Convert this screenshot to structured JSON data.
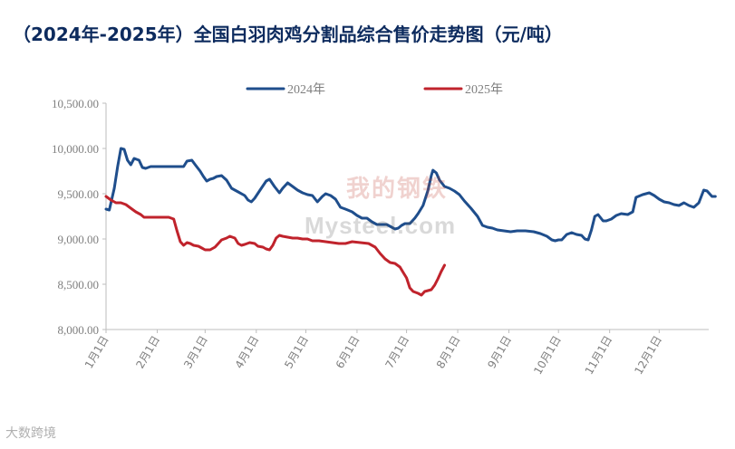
{
  "title": "（2024年-2025年）全国白羽肉鸡分割品综合售价走势图（元/吨）",
  "watermark": {
    "logo": "我的钢铁",
    "text": "Mysteel.com"
  },
  "source_mark": "大数跨境",
  "chart_data": {
    "type": "line",
    "title": "（2024年-2025年）全国白羽肉鸡分割品综合售价走势图（元/吨）",
    "xlabel": "",
    "ylabel": "",
    "ylim": [
      8000,
      10500
    ],
    "yticks": [
      8000,
      8500,
      9000,
      9500,
      10000,
      10500
    ],
    "ytick_labels": [
      "8,000.00",
      "8,500.00",
      "9,000.00",
      "9,500.00",
      "10,000.00",
      "10,500.00"
    ],
    "xlim": [
      1,
      366
    ],
    "xticks": [
      1,
      32,
      61,
      92,
      122,
      153,
      183,
      214,
      245,
      275,
      306,
      336
    ],
    "xtick_labels": [
      "1月1日",
      "2月1日",
      "3月1日",
      "4月1日",
      "5月1日",
      "6月1日",
      "7月1日",
      "8月1日",
      "9月1日",
      "10月1日",
      "11月1日",
      "12月1日"
    ],
    "x_unit": "day of year",
    "grid": false,
    "legend": "top-center",
    "series": [
      {
        "name": "2024年",
        "color": "#1f4e8c",
        "points": [
          [
            1,
            9330
          ],
          [
            3,
            9320
          ],
          [
            6,
            9560
          ],
          [
            8,
            9800
          ],
          [
            10,
            10000
          ],
          [
            12,
            9990
          ],
          [
            14,
            9870
          ],
          [
            16,
            9820
          ],
          [
            18,
            9890
          ],
          [
            21,
            9870
          ],
          [
            23,
            9790
          ],
          [
            25,
            9780
          ],
          [
            28,
            9800
          ],
          [
            33,
            9800
          ],
          [
            40,
            9800
          ],
          [
            45,
            9800
          ],
          [
            48,
            9800
          ],
          [
            50,
            9860
          ],
          [
            53,
            9870
          ],
          [
            55,
            9820
          ],
          [
            58,
            9750
          ],
          [
            60,
            9690
          ],
          [
            62,
            9640
          ],
          [
            64,
            9660
          ],
          [
            66,
            9670
          ],
          [
            68,
            9690
          ],
          [
            71,
            9700
          ],
          [
            74,
            9650
          ],
          [
            77,
            9560
          ],
          [
            81,
            9520
          ],
          [
            85,
            9480
          ],
          [
            87,
            9430
          ],
          [
            89,
            9410
          ],
          [
            91,
            9450
          ],
          [
            95,
            9560
          ],
          [
            98,
            9640
          ],
          [
            100,
            9660
          ],
          [
            103,
            9580
          ],
          [
            106,
            9510
          ],
          [
            108,
            9560
          ],
          [
            111,
            9620
          ],
          [
            114,
            9580
          ],
          [
            117,
            9540
          ],
          [
            120,
            9510
          ],
          [
            123,
            9490
          ],
          [
            126,
            9480
          ],
          [
            129,
            9410
          ],
          [
            132,
            9470
          ],
          [
            134,
            9500
          ],
          [
            137,
            9480
          ],
          [
            140,
            9440
          ],
          [
            143,
            9350
          ],
          [
            146,
            9330
          ],
          [
            150,
            9300
          ],
          [
            153,
            9260
          ],
          [
            156,
            9230
          ],
          [
            159,
            9230
          ],
          [
            162,
            9190
          ],
          [
            165,
            9160
          ],
          [
            168,
            9160
          ],
          [
            171,
            9160
          ],
          [
            174,
            9130
          ],
          [
            176,
            9110
          ],
          [
            178,
            9120
          ],
          [
            180,
            9150
          ],
          [
            182,
            9170
          ],
          [
            185,
            9170
          ],
          [
            188,
            9230
          ],
          [
            190,
            9280
          ],
          [
            193,
            9370
          ],
          [
            196,
            9540
          ],
          [
            198,
            9700
          ],
          [
            199,
            9760
          ],
          [
            201,
            9730
          ],
          [
            203,
            9650
          ],
          [
            206,
            9580
          ],
          [
            209,
            9560
          ],
          [
            212,
            9530
          ],
          [
            215,
            9490
          ],
          [
            218,
            9420
          ],
          [
            222,
            9340
          ],
          [
            226,
            9250
          ],
          [
            229,
            9150
          ],
          [
            232,
            9130
          ],
          [
            235,
            9120
          ],
          [
            238,
            9100
          ],
          [
            242,
            9090
          ],
          [
            246,
            9080
          ],
          [
            250,
            9090
          ],
          [
            255,
            9090
          ],
          [
            260,
            9080
          ],
          [
            264,
            9060
          ],
          [
            268,
            9030
          ],
          [
            271,
            8990
          ],
          [
            273,
            8980
          ],
          [
            275,
            8990
          ],
          [
            277,
            8990
          ],
          [
            280,
            9050
          ],
          [
            283,
            9070
          ],
          [
            286,
            9050
          ],
          [
            289,
            9040
          ],
          [
            291,
            9000
          ],
          [
            293,
            8990
          ],
          [
            295,
            9100
          ],
          [
            297,
            9250
          ],
          [
            299,
            9270
          ],
          [
            302,
            9200
          ],
          [
            304,
            9200
          ],
          [
            307,
            9220
          ],
          [
            310,
            9260
          ],
          [
            313,
            9280
          ],
          [
            317,
            9270
          ],
          [
            320,
            9300
          ],
          [
            322,
            9460
          ],
          [
            326,
            9490
          ],
          [
            330,
            9510
          ],
          [
            333,
            9480
          ],
          [
            336,
            9440
          ],
          [
            339,
            9410
          ],
          [
            342,
            9400
          ],
          [
            345,
            9380
          ],
          [
            348,
            9370
          ],
          [
            351,
            9400
          ],
          [
            354,
            9370
          ],
          [
            357,
            9350
          ],
          [
            360,
            9400
          ],
          [
            363,
            9540
          ],
          [
            365,
            9530
          ],
          [
            368,
            9470
          ],
          [
            370,
            9470
          ]
        ]
      },
      {
        "name": "2025年",
        "color": "#c0232c",
        "points": [
          [
            1,
            9470
          ],
          [
            4,
            9430
          ],
          [
            7,
            9400
          ],
          [
            10,
            9400
          ],
          [
            13,
            9380
          ],
          [
            16,
            9340
          ],
          [
            19,
            9300
          ],
          [
            22,
            9270
          ],
          [
            24,
            9240
          ],
          [
            26,
            9240
          ],
          [
            30,
            9240
          ],
          [
            35,
            9240
          ],
          [
            39,
            9240
          ],
          [
            42,
            9220
          ],
          [
            44,
            9090
          ],
          [
            46,
            8970
          ],
          [
            48,
            8930
          ],
          [
            50,
            8960
          ],
          [
            52,
            8950
          ],
          [
            54,
            8930
          ],
          [
            57,
            8920
          ],
          [
            59,
            8900
          ],
          [
            61,
            8880
          ],
          [
            64,
            8880
          ],
          [
            67,
            8910
          ],
          [
            69,
            8950
          ],
          [
            71,
            8990
          ],
          [
            74,
            9010
          ],
          [
            76,
            9030
          ],
          [
            79,
            9010
          ],
          [
            81,
            8950
          ],
          [
            83,
            8930
          ],
          [
            85,
            8940
          ],
          [
            88,
            8960
          ],
          [
            91,
            8950
          ],
          [
            93,
            8920
          ],
          [
            96,
            8910
          ],
          [
            98,
            8890
          ],
          [
            100,
            8880
          ],
          [
            102,
            8930
          ],
          [
            104,
            9010
          ],
          [
            106,
            9040
          ],
          [
            108,
            9030
          ],
          [
            111,
            9020
          ],
          [
            114,
            9010
          ],
          [
            117,
            9010
          ],
          [
            120,
            9000
          ],
          [
            123,
            9000
          ],
          [
            126,
            8980
          ],
          [
            130,
            8980
          ],
          [
            134,
            8970
          ],
          [
            138,
            8960
          ],
          [
            142,
            8950
          ],
          [
            146,
            8950
          ],
          [
            150,
            8970
          ],
          [
            155,
            8960
          ],
          [
            160,
            8950
          ],
          [
            164,
            8910
          ],
          [
            167,
            8840
          ],
          [
            170,
            8780
          ],
          [
            173,
            8740
          ],
          [
            176,
            8730
          ],
          [
            179,
            8690
          ],
          [
            181,
            8630
          ],
          [
            183,
            8570
          ],
          [
            185,
            8460
          ],
          [
            187,
            8420
          ],
          [
            190,
            8400
          ],
          [
            192,
            8380
          ],
          [
            194,
            8420
          ],
          [
            196,
            8430
          ],
          [
            198,
            8440
          ],
          [
            200,
            8490
          ],
          [
            202,
            8560
          ],
          [
            204,
            8640
          ],
          [
            206,
            8710
          ]
        ]
      }
    ]
  }
}
